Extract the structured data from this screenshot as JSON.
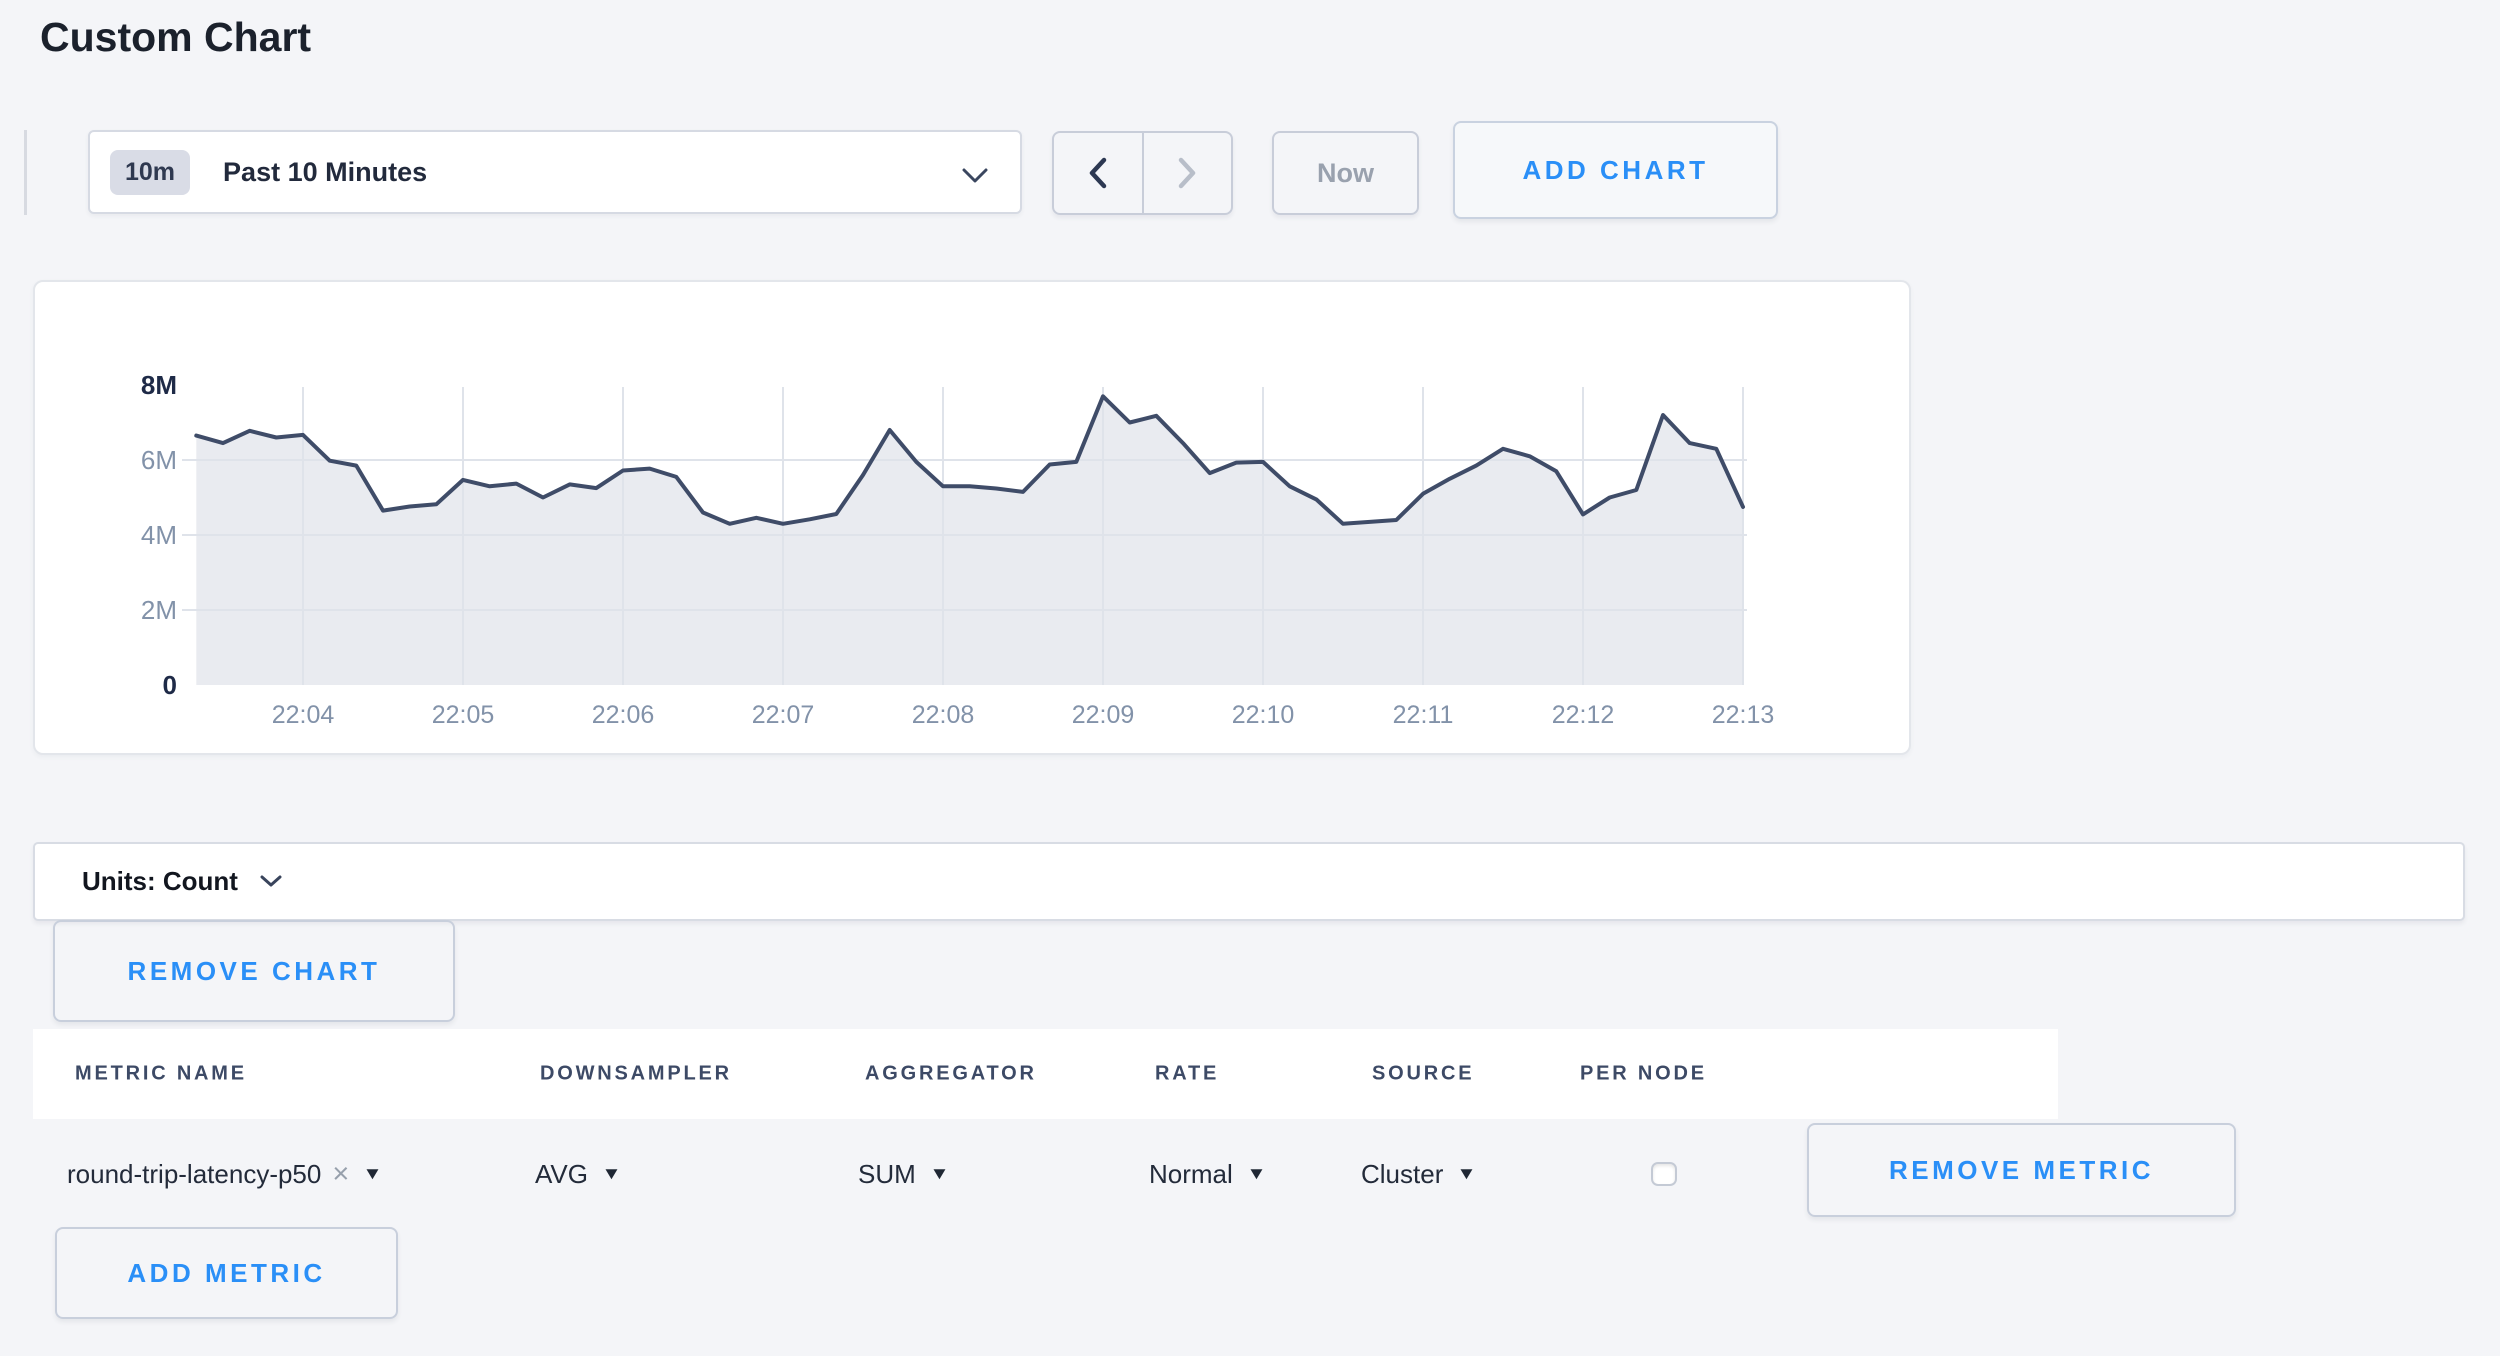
{
  "page": {
    "title": "Custom Chart"
  },
  "toolbar": {
    "time_range_badge": "10m",
    "time_range_label": "Past 10 Minutes",
    "now_label": "Now",
    "add_chart_label": "ADD CHART"
  },
  "units_bar": {
    "label": "Units: Count"
  },
  "chart_actions": {
    "remove_chart_label": "REMOVE CHART"
  },
  "metrics_table": {
    "columns": [
      "METRIC NAME",
      "DOWNSAMPLER",
      "AGGREGATOR",
      "RATE",
      "SOURCE",
      "PER NODE"
    ],
    "rows": [
      {
        "metric_name": "round-trip-latency-p50",
        "downsampler": "AVG",
        "aggregator": "SUM",
        "rate": "Normal",
        "source": "Cluster",
        "per_node_checked": false,
        "remove_label": "REMOVE METRIC"
      }
    ],
    "add_metric_label": "ADD METRIC"
  },
  "icons": {
    "clear": "×",
    "dropdown_arrow": "▼"
  },
  "chart_data": {
    "type": "area",
    "series_name": "round-trip-latency-p50",
    "unit": "Count",
    "x_start": "22:03:20",
    "x_interval_seconds": 10,
    "x_ticks": [
      "22:04",
      "22:05",
      "22:06",
      "22:07",
      "22:08",
      "22:09",
      "22:10",
      "22:11",
      "22:12",
      "22:13"
    ],
    "y_ticks": [
      {
        "label": "8M",
        "value": 8000000,
        "emphasis": true,
        "gridline": false
      },
      {
        "label": "6M",
        "value": 6000000,
        "emphasis": false,
        "gridline": true
      },
      {
        "label": "4M",
        "value": 4000000,
        "emphasis": false,
        "gridline": true
      },
      {
        "label": "2M",
        "value": 2000000,
        "emphasis": false,
        "gridline": true
      },
      {
        "label": "0",
        "value": 0,
        "emphasis": true,
        "gridline": false
      }
    ],
    "ylim": [
      0,
      8000000
    ],
    "grid": true,
    "legend": "none",
    "values": [
      6650000,
      6450000,
      6780000,
      6600000,
      6670000,
      5980000,
      5850000,
      4650000,
      4760000,
      4820000,
      5470000,
      5300000,
      5370000,
      5000000,
      5350000,
      5250000,
      5720000,
      5770000,
      5550000,
      4600000,
      4300000,
      4460000,
      4300000,
      4420000,
      4560000,
      5600000,
      6800000,
      5950000,
      5300000,
      5300000,
      5240000,
      5150000,
      5880000,
      5950000,
      7700000,
      7000000,
      7180000,
      6450000,
      5650000,
      5930000,
      5950000,
      5300000,
      4950000,
      4300000,
      4350000,
      4400000,
      5100000,
      5500000,
      5850000,
      6300000,
      6100000,
      5700000,
      4550000,
      5000000,
      5200000,
      7200000,
      6450000,
      6300000,
      4750000
    ]
  },
  "colors": {
    "page_bg": "#f4f5f8",
    "accent_blue": "#2a8ff7",
    "chart_line": "#3f4c68",
    "chart_fill": "#e9ebf0",
    "chart_grid": "#dfe3ea",
    "axis_label": "#8292a9",
    "axis_emphasis": "#1e2a47"
  }
}
